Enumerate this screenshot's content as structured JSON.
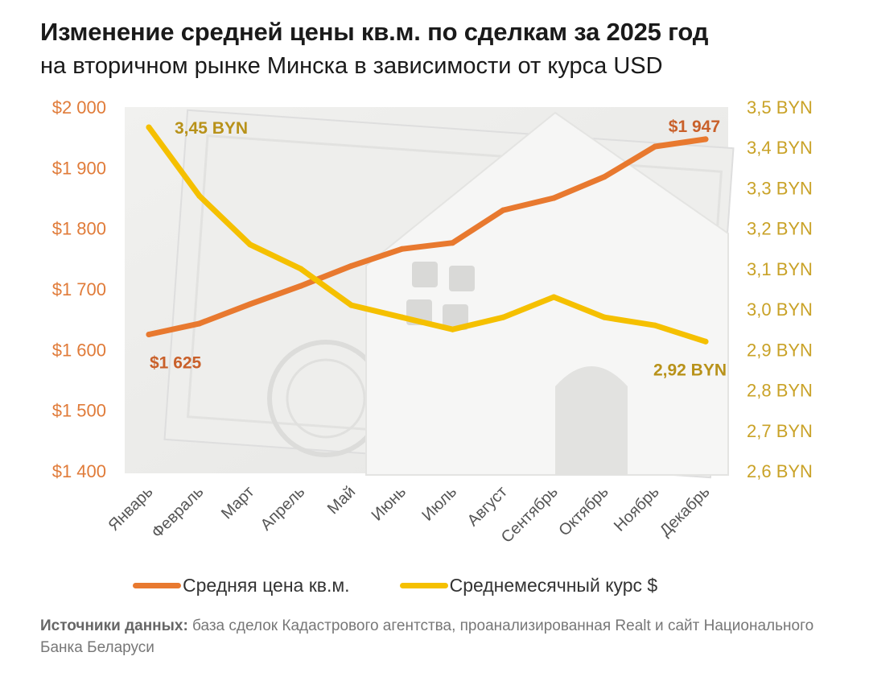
{
  "header": {
    "title": "Изменение средней цены кв.м. по сделкам за 2025 год",
    "subtitle": "на вторичном рынке Минска в зависимости от курса USD"
  },
  "chart_data": {
    "type": "line",
    "categories": [
      "Январь",
      "Февраль",
      "Март",
      "Апрель",
      "Май",
      "Июнь",
      "Июль",
      "Август",
      "Сентябрь",
      "Октябрь",
      "Ноябрь",
      "Декабрь"
    ],
    "series": [
      {
        "name": "Средняя цена кв.м.",
        "axis": "left",
        "color": "#e8792f",
        "values": [
          1625,
          1643,
          1675,
          1705,
          1738,
          1766,
          1776,
          1830,
          1850,
          1885,
          1935,
          1947
        ]
      },
      {
        "name": "Среднемесячный курс $",
        "axis": "right",
        "color": "#f5c000",
        "values": [
          3.45,
          3.28,
          3.16,
          3.1,
          3.01,
          2.98,
          2.95,
          2.98,
          3.03,
          2.98,
          2.96,
          2.92
        ]
      }
    ],
    "y_left": {
      "min": 1400,
      "max": 2000,
      "ticks": [
        2000,
        1900,
        1800,
        1700,
        1600,
        1500,
        1400
      ],
      "tick_labels": [
        "$2 000",
        "$1 900",
        "$1 800",
        "$1 700",
        "$1 600",
        "$1 500",
        "$1 400"
      ]
    },
    "y_right": {
      "min": 2.6,
      "max": 3.5,
      "ticks": [
        3.5,
        3.4,
        3.3,
        3.2,
        3.1,
        3.0,
        2.9,
        2.8,
        2.7,
        2.6
      ],
      "tick_labels": [
        "3,5 BYN",
        "3,4 BYN",
        "3,3 BYN",
        "3,2 BYN",
        "3,1 BYN",
        "3,0 BYN",
        "2,9 BYN",
        "2,8 BYN",
        "2,7 BYN",
        "2,6 BYN"
      ]
    },
    "annotations": {
      "price_first": "$1 625",
      "price_last": "$1 947",
      "rate_first": "3,45 BYN",
      "rate_last": "2,92 BYN"
    },
    "legend_position": "bottom",
    "grid": false
  },
  "footer": {
    "source_bold": "Источники данных:",
    "source_text": " база сделок Кадастрового агентства, проанализированная Realt и сайт Национального Банка Беларуси"
  }
}
